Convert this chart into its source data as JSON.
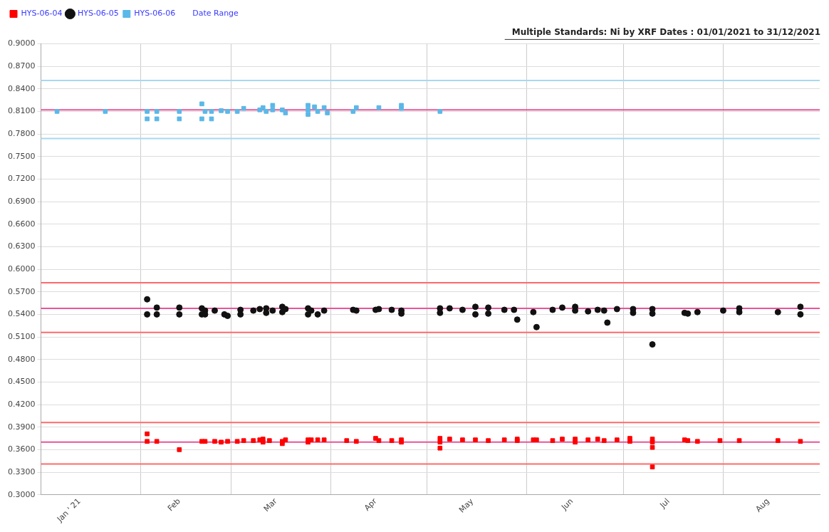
{
  "chart_data": {
    "type": "scatter",
    "title": "Multiple Standards: Ni by XRF Dates : 01/01/2021 to 31/12/2021",
    "annotations": [
      "Date Range"
    ],
    "legend": "top left",
    "grid": true,
    "xlim": [
      "2021-01-01",
      "2021-08-31"
    ],
    "xticks": [
      {
        "value": "2021-01-13",
        "label": "Jan ' 21"
      },
      {
        "value": "2021-02-01",
        "label": null
      },
      {
        "value": "2021-02-13",
        "label": "Feb"
      },
      {
        "value": "2021-03-01",
        "label": null
      },
      {
        "value": "2021-03-15",
        "label": "Mar"
      },
      {
        "value": "2021-04-01",
        "label": null
      },
      {
        "value": "2021-04-15",
        "label": "Apr"
      },
      {
        "value": "2021-05-01",
        "label": null
      },
      {
        "value": "2021-05-15",
        "label": "May"
      },
      {
        "value": "2021-06-01",
        "label": null
      },
      {
        "value": "2021-06-15",
        "label": "Jun"
      },
      {
        "value": "2021-07-01",
        "label": null
      },
      {
        "value": "2021-07-15",
        "label": "Jul"
      },
      {
        "value": "2021-08-01",
        "label": null
      },
      {
        "value": "2021-08-15",
        "label": "Aug"
      }
    ],
    "ylim": [
      0.3,
      0.9
    ],
    "yticks": [
      {
        "value": 0.3,
        "label": "0.3000"
      },
      {
        "value": 0.33,
        "label": "0.3300"
      },
      {
        "value": 0.36,
        "label": "0.3600"
      },
      {
        "value": 0.39,
        "label": "0.3900"
      },
      {
        "value": 0.42,
        "label": "0.4200"
      },
      {
        "value": 0.45,
        "label": "0.4500"
      },
      {
        "value": 0.48,
        "label": "0.4800"
      },
      {
        "value": 0.51,
        "label": "0.5100"
      },
      {
        "value": 0.54,
        "label": "0.5400"
      },
      {
        "value": 0.57,
        "label": "0.5700"
      },
      {
        "value": 0.6,
        "label": "0.6000"
      },
      {
        "value": 0.63,
        "label": "0.6300"
      },
      {
        "value": 0.66,
        "label": "0.6600"
      },
      {
        "value": 0.69,
        "label": "0.6900"
      },
      {
        "value": 0.72,
        "label": "0.7200"
      },
      {
        "value": 0.75,
        "label": "0.7500"
      },
      {
        "value": 0.78,
        "label": "0.7800"
      },
      {
        "value": 0.81,
        "label": "0.8100"
      },
      {
        "value": 0.84,
        "label": "0.8400"
      },
      {
        "value": 0.87,
        "label": "0.8700"
      },
      {
        "value": 0.9,
        "label": "0.9000"
      }
    ],
    "ref_lines": [
      {
        "axis": "y",
        "value": 0.851,
        "color": "#a8d8f0"
      },
      {
        "axis": "y",
        "value": 0.812,
        "color": "#e8559a"
      },
      {
        "axis": "y",
        "value": 0.774,
        "color": "#a8d8f0"
      },
      {
        "axis": "y",
        "value": 0.582,
        "color": "#ff6a6a"
      },
      {
        "axis": "y",
        "value": 0.548,
        "color": "#e8559a"
      },
      {
        "axis": "y",
        "value": 0.516,
        "color": "#ff6a6a"
      },
      {
        "axis": "y",
        "value": 0.396,
        "color": "#ff6a6a"
      },
      {
        "axis": "y",
        "value": 0.37,
        "color": "#e8559a"
      },
      {
        "axis": "y",
        "value": 0.341,
        "color": "#ff6a6a"
      }
    ],
    "series": [
      {
        "name": "HYS-06-04",
        "color": "#ff0000",
        "marker": "square",
        "x": [
          "2021-02-03",
          "2021-02-03",
          "2021-02-06",
          "2021-02-13",
          "2021-02-20",
          "2021-02-21",
          "2021-02-24",
          "2021-02-26",
          "2021-02-28",
          "2021-03-03",
          "2021-03-05",
          "2021-03-08",
          "2021-03-10",
          "2021-03-11",
          "2021-03-11",
          "2021-03-13",
          "2021-03-17",
          "2021-03-17",
          "2021-03-18",
          "2021-03-25",
          "2021-03-25",
          "2021-03-26",
          "2021-03-28",
          "2021-03-30",
          "2021-04-06",
          "2021-04-09",
          "2021-04-15",
          "2021-04-16",
          "2021-04-20",
          "2021-04-23",
          "2021-04-23",
          "2021-05-05",
          "2021-05-05",
          "2021-05-05",
          "2021-05-08",
          "2021-05-12",
          "2021-05-16",
          "2021-05-20",
          "2021-05-25",
          "2021-05-29",
          "2021-05-29",
          "2021-06-03",
          "2021-06-04",
          "2021-06-09",
          "2021-06-12",
          "2021-06-16",
          "2021-06-16",
          "2021-06-20",
          "2021-06-23",
          "2021-06-25",
          "2021-06-29",
          "2021-07-03",
          "2021-07-03",
          "2021-07-10",
          "2021-07-10",
          "2021-07-10",
          "2021-07-10",
          "2021-07-20",
          "2021-07-21",
          "2021-07-24",
          "2021-07-31",
          "2021-08-06",
          "2021-08-18",
          "2021-08-25"
        ],
        "values": [
          0.381,
          0.371,
          0.371,
          0.36,
          0.371,
          0.371,
          0.371,
          0.37,
          0.371,
          0.371,
          0.372,
          0.372,
          0.373,
          0.374,
          0.37,
          0.372,
          0.371,
          0.368,
          0.373,
          0.373,
          0.37,
          0.373,
          0.373,
          0.373,
          0.372,
          0.371,
          0.375,
          0.372,
          0.372,
          0.373,
          0.37,
          0.375,
          0.37,
          0.362,
          0.374,
          0.373,
          0.373,
          0.372,
          0.373,
          0.374,
          0.372,
          0.373,
          0.373,
          0.372,
          0.374,
          0.374,
          0.37,
          0.373,
          0.374,
          0.372,
          0.373,
          0.375,
          0.371,
          0.374,
          0.37,
          0.363,
          0.337,
          0.373,
          0.372,
          0.371,
          0.372,
          0.372,
          0.372,
          0.371
        ]
      },
      {
        "name": "HYS-06-05",
        "color": "#111111",
        "marker": "circle",
        "x": [
          "2021-02-03",
          "2021-02-03",
          "2021-02-06",
          "2021-02-06",
          "2021-02-13",
          "2021-02-13",
          "2021-02-20",
          "2021-02-20",
          "2021-02-21",
          "2021-02-21",
          "2021-02-24",
          "2021-02-27",
          "2021-02-28",
          "2021-03-04",
          "2021-03-04",
          "2021-03-08",
          "2021-03-10",
          "2021-03-12",
          "2021-03-12",
          "2021-03-14",
          "2021-03-17",
          "2021-03-17",
          "2021-03-18",
          "2021-03-25",
          "2021-03-25",
          "2021-03-26",
          "2021-03-28",
          "2021-03-30",
          "2021-04-08",
          "2021-04-09",
          "2021-04-15",
          "2021-04-16",
          "2021-04-20",
          "2021-04-23",
          "2021-04-23",
          "2021-05-05",
          "2021-05-05",
          "2021-05-08",
          "2021-05-12",
          "2021-05-16",
          "2021-05-16",
          "2021-05-20",
          "2021-05-20",
          "2021-05-25",
          "2021-05-28",
          "2021-05-29",
          "2021-06-03",
          "2021-06-04",
          "2021-06-09",
          "2021-06-12",
          "2021-06-16",
          "2021-06-16",
          "2021-06-20",
          "2021-06-23",
          "2021-06-25",
          "2021-06-26",
          "2021-06-29",
          "2021-07-04",
          "2021-07-04",
          "2021-07-10",
          "2021-07-10",
          "2021-07-10",
          "2021-07-20",
          "2021-07-21",
          "2021-07-24",
          "2021-08-01",
          "2021-08-06",
          "2021-08-06",
          "2021-08-18",
          "2021-08-25",
          "2021-08-25"
        ],
        "values": [
          0.56,
          0.54,
          0.549,
          0.54,
          0.549,
          0.54,
          0.548,
          0.54,
          0.545,
          0.54,
          0.545,
          0.54,
          0.538,
          0.546,
          0.54,
          0.545,
          0.547,
          0.548,
          0.542,
          0.545,
          0.55,
          0.543,
          0.547,
          0.548,
          0.54,
          0.545,
          0.54,
          0.545,
          0.546,
          0.545,
          0.546,
          0.547,
          0.546,
          0.545,
          0.541,
          0.548,
          0.542,
          0.548,
          0.546,
          0.55,
          0.54,
          0.549,
          0.541,
          0.546,
          0.546,
          0.533,
          0.543,
          0.523,
          0.546,
          0.549,
          0.55,
          0.545,
          0.544,
          0.546,
          0.545,
          0.529,
          0.547,
          0.547,
          0.542,
          0.547,
          0.541,
          0.5,
          0.542,
          0.541,
          0.543,
          0.545,
          0.548,
          0.543,
          0.543,
          0.55,
          0.54
        ]
      },
      {
        "name": "HYS-06-06",
        "color": "#5bb8e8",
        "marker": "square",
        "x": [
          "2021-01-06",
          "2021-01-21",
          "2021-02-03",
          "2021-02-03",
          "2021-02-06",
          "2021-02-06",
          "2021-02-13",
          "2021-02-13",
          "2021-02-20",
          "2021-02-20",
          "2021-02-21",
          "2021-02-23",
          "2021-02-23",
          "2021-02-26",
          "2021-02-28",
          "2021-03-03",
          "2021-03-05",
          "2021-03-10",
          "2021-03-11",
          "2021-03-12",
          "2021-03-14",
          "2021-03-14",
          "2021-03-17",
          "2021-03-18",
          "2021-03-25",
          "2021-03-25",
          "2021-03-25",
          "2021-03-27",
          "2021-03-28",
          "2021-03-30",
          "2021-03-31",
          "2021-04-08",
          "2021-04-09",
          "2021-04-16",
          "2021-04-23",
          "2021-04-23",
          "2021-05-05"
        ],
        "values": [
          0.81,
          0.81,
          0.81,
          0.8,
          0.81,
          0.8,
          0.81,
          0.8,
          0.82,
          0.8,
          0.81,
          0.81,
          0.8,
          0.811,
          0.81,
          0.81,
          0.814,
          0.812,
          0.815,
          0.81,
          0.818,
          0.812,
          0.812,
          0.808,
          0.818,
          0.812,
          0.806,
          0.816,
          0.81,
          0.815,
          0.808,
          0.81,
          0.815,
          0.815,
          0.814,
          0.818,
          0.81
        ]
      }
    ]
  }
}
